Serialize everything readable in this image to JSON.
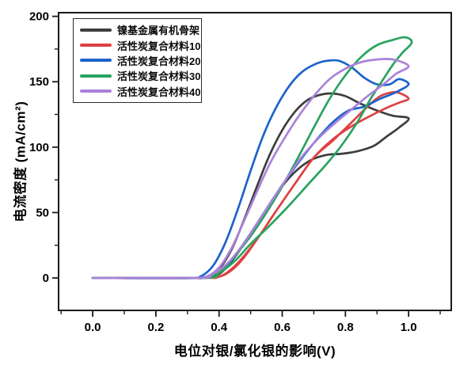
{
  "chart_data": {
    "type": "line",
    "title": "",
    "xlabel": "电位对银/氯化银的影响(V)",
    "ylabel": "电流密度 (mA/cm²)",
    "xlim": [
      -0.108,
      1.135
    ],
    "ylim": [
      -24.8,
      202.8
    ],
    "grid": false,
    "legend_position": "top-left",
    "axis_color": "#1a1a1a",
    "background_color": "#ffffff",
    "x_major_ticks": [
      0.0,
      0.2,
      0.4,
      0.6,
      0.8,
      1.0
    ],
    "x_tick_labels": [
      "0.0",
      "0.2",
      "0.4",
      "0.6",
      "0.8",
      "1.0"
    ],
    "x_minor_ticks": [
      -0.1,
      0.1,
      0.3,
      0.5,
      0.7,
      0.9,
      1.1
    ],
    "y_major_ticks": [
      0,
      50,
      100,
      150,
      200
    ],
    "y_tick_labels": [
      "0",
      "50",
      "100",
      "150",
      "200"
    ],
    "y_minor_ticks": [
      25,
      75,
      125,
      175
    ],
    "series": [
      {
        "name": "镍基金属有机骨架",
        "color": "#3d3d3d",
        "forward": [
          [
            0,
            0
          ],
          [
            0.3,
            0
          ],
          [
            0.36,
            1
          ],
          [
            0.4,
            7
          ],
          [
            0.44,
            22
          ],
          [
            0.48,
            45
          ],
          [
            0.52,
            70
          ],
          [
            0.56,
            94
          ],
          [
            0.6,
            113
          ],
          [
            0.64,
            127
          ],
          [
            0.68,
            136
          ],
          [
            0.72,
            140
          ],
          [
            0.76,
            141
          ],
          [
            0.8,
            139
          ],
          [
            0.85,
            133
          ],
          [
            0.9,
            128
          ],
          [
            0.95,
            124
          ],
          [
            1.0,
            122
          ]
        ],
        "return": [
          [
            1.0,
            122
          ],
          [
            0.97,
            115
          ],
          [
            0.93,
            108
          ],
          [
            0.89,
            101
          ],
          [
            0.84,
            97
          ],
          [
            0.79,
            95
          ],
          [
            0.74,
            94
          ],
          [
            0.69,
            90
          ],
          [
            0.64,
            81
          ],
          [
            0.59,
            67
          ],
          [
            0.54,
            49
          ],
          [
            0.49,
            30
          ],
          [
            0.44,
            13
          ],
          [
            0.4,
            3
          ],
          [
            0.35,
            0
          ],
          [
            0.3,
            0
          ],
          [
            0.0,
            0
          ]
        ]
      },
      {
        "name": "活性炭复合材料10",
        "color": "#df4042",
        "forward": [
          [
            0,
            0
          ],
          [
            0.34,
            0
          ],
          [
            0.4,
            1
          ],
          [
            0.44,
            6
          ],
          [
            0.48,
            16
          ],
          [
            0.53,
            33
          ],
          [
            0.58,
            51
          ],
          [
            0.64,
            72
          ],
          [
            0.7,
            92
          ],
          [
            0.76,
            106
          ],
          [
            0.82,
            116
          ],
          [
            0.88,
            124
          ],
          [
            0.93,
            130
          ],
          [
            0.97,
            134
          ],
          [
            1.0,
            137
          ]
        ],
        "return": [
          [
            1.0,
            137
          ],
          [
            0.975,
            141
          ],
          [
            0.95,
            142
          ],
          [
            0.91,
            139
          ],
          [
            0.87,
            131
          ],
          [
            0.82,
            119
          ],
          [
            0.76,
            105
          ],
          [
            0.7,
            92
          ],
          [
            0.64,
            72
          ],
          [
            0.58,
            51
          ],
          [
            0.53,
            33
          ],
          [
            0.48,
            17
          ],
          [
            0.44,
            7
          ],
          [
            0.4,
            1
          ],
          [
            0.34,
            0
          ],
          [
            0.0,
            0
          ]
        ]
      },
      {
        "name": "活性炭复合材料20",
        "color": "#1d63cb",
        "forward": [
          [
            0,
            0
          ],
          [
            0.3,
            0
          ],
          [
            0.34,
            1
          ],
          [
            0.38,
            9
          ],
          [
            0.42,
            27
          ],
          [
            0.46,
            53
          ],
          [
            0.5,
            82
          ],
          [
            0.54,
            109
          ],
          [
            0.58,
            130
          ],
          [
            0.62,
            146
          ],
          [
            0.66,
            157
          ],
          [
            0.7,
            163
          ],
          [
            0.74,
            166
          ],
          [
            0.78,
            166
          ],
          [
            0.82,
            161
          ],
          [
            0.86,
            153
          ],
          [
            0.9,
            148
          ],
          [
            0.94,
            148
          ],
          [
            0.97,
            152
          ],
          [
            1.0,
            148
          ]
        ],
        "return": [
          [
            1.0,
            148
          ],
          [
            0.96,
            142
          ],
          [
            0.91,
            137
          ],
          [
            0.86,
            131
          ],
          [
            0.81,
            128
          ],
          [
            0.76,
            119
          ],
          [
            0.71,
            106
          ],
          [
            0.66,
            91
          ],
          [
            0.6,
            71
          ],
          [
            0.54,
            49
          ],
          [
            0.48,
            27
          ],
          [
            0.43,
            11
          ],
          [
            0.38,
            2
          ],
          [
            0.33,
            0
          ],
          [
            0.0,
            0
          ]
        ]
      },
      {
        "name": "活性炭复合材料30",
        "color": "#29a35e",
        "forward": [
          [
            0,
            0
          ],
          [
            0.32,
            0
          ],
          [
            0.38,
            2
          ],
          [
            0.42,
            9
          ],
          [
            0.46,
            20
          ],
          [
            0.5,
            32
          ],
          [
            0.55,
            50
          ],
          [
            0.6,
            70
          ],
          [
            0.65,
            92
          ],
          [
            0.7,
            115
          ],
          [
            0.75,
            137
          ],
          [
            0.8,
            155
          ],
          [
            0.85,
            169
          ],
          [
            0.9,
            178
          ],
          [
            0.95,
            182
          ],
          [
            0.99,
            184
          ],
          [
            1.01,
            180
          ]
        ],
        "return": [
          [
            1.01,
            180
          ],
          [
            0.98,
            172
          ],
          [
            0.95,
            163
          ],
          [
            0.92,
            152
          ],
          [
            0.88,
            137
          ],
          [
            0.84,
            120
          ],
          [
            0.79,
            102
          ],
          [
            0.74,
            87
          ],
          [
            0.68,
            71
          ],
          [
            0.62,
            55
          ],
          [
            0.56,
            40
          ],
          [
            0.5,
            26
          ],
          [
            0.45,
            13
          ],
          [
            0.4,
            4
          ],
          [
            0.35,
            0
          ],
          [
            0.0,
            0
          ]
        ]
      },
      {
        "name": "活性炭复合材料40",
        "color": "#aa82da",
        "forward": [
          [
            0,
            0
          ],
          [
            0.31,
            0
          ],
          [
            0.36,
            1
          ],
          [
            0.4,
            8
          ],
          [
            0.44,
            23
          ],
          [
            0.48,
            44
          ],
          [
            0.52,
            66
          ],
          [
            0.56,
            87
          ],
          [
            0.6,
            104
          ],
          [
            0.65,
            123
          ],
          [
            0.7,
            139
          ],
          [
            0.75,
            152
          ],
          [
            0.8,
            160
          ],
          [
            0.85,
            165
          ],
          [
            0.9,
            167
          ],
          [
            0.95,
            167
          ],
          [
            1.0,
            162
          ]
        ],
        "return": [
          [
            1.0,
            162
          ],
          [
            0.96,
            156
          ],
          [
            0.92,
            148
          ],
          [
            0.87,
            139
          ],
          [
            0.82,
            129
          ],
          [
            0.77,
            119
          ],
          [
            0.72,
            108
          ],
          [
            0.66,
            92
          ],
          [
            0.6,
            71
          ],
          [
            0.54,
            49
          ],
          [
            0.48,
            27
          ],
          [
            0.43,
            12
          ],
          [
            0.38,
            3
          ],
          [
            0.33,
            0
          ],
          [
            0.0,
            0
          ]
        ]
      }
    ]
  }
}
